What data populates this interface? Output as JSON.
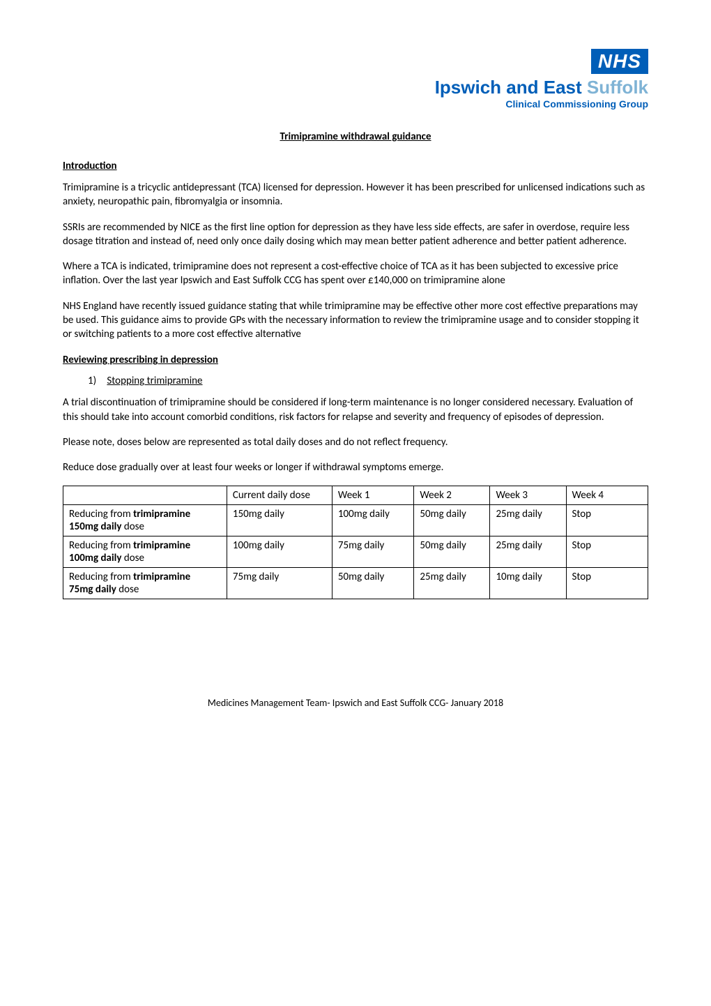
{
  "logo": {
    "badge_text": "NHS",
    "badge_bg": "#005eb8",
    "badge_fg": "#ffffff",
    "org_main": "Ipswich and East",
    "org_suffix": "Suffolk",
    "org_main_color": "#005eb8",
    "org_suffix_color": "#7fb3d5",
    "org_sub": "Clinical Commissioning Group",
    "org_fontsize_pt": 20,
    "sub_fontsize_pt": 10
  },
  "title": "Trimipramine withdrawal guidance",
  "sections": {
    "intro_heading": "Introduction",
    "intro_p1": "Trimipramine is a tricyclic antidepressant (TCA) licensed for depression. However it has been prescribed for unlicensed indications such as anxiety, neuropathic pain, fibromyalgia or insomnia.",
    "intro_p2": "SSRIs are recommended by NICE as the first line option for depression as they have less side effects, are safer in overdose, require less dosage titration and instead of, need only once daily dosing which may mean better patient adherence and better patient adherence.",
    "intro_p3": "Where a TCA is indicated, trimipramine does not represent a cost-effective choice of TCA as it has been subjected to excessive price inflation. Over the last year Ipswich and East Suffolk CCG has spent over £140,000 on trimipramine alone",
    "intro_p4": "NHS England have recently issued guidance stating that while trimipramine may be effective other more cost effective preparations may be used. This guidance aims to provide GPs with the necessary information to review the trimipramine usage and to consider stopping it or switching patients to a more cost effective alternative",
    "review_heading": "Reviewing prescribing in depression",
    "item1_num": "1)",
    "item1_label": "Stopping trimipramine",
    "item1_p1": "A trial discontinuation of trimipramine should be considered if long-term maintenance is no longer considered necessary. Evaluation of this should take into account comorbid conditions, risk factors for relapse and severity and frequency of episodes of depression.",
    "item1_p2": "Please note, doses below are represented as total daily doses and do not reflect frequency.",
    "item1_p3": "Reduce dose gradually over at least four weeks or longer if withdrawal symptoms emerge."
  },
  "table": {
    "border_color": "#000000",
    "fontsize_pt": 11,
    "columns": [
      "",
      "Current daily dose",
      "Week 1",
      "Week 2",
      "Week 3",
      "Week 4"
    ],
    "col_widths_pct": [
      28,
      18,
      14,
      13,
      13,
      14
    ],
    "rows": [
      {
        "label_prefix": "Reducing from ",
        "label_bold1": "trimipramine",
        "label_mid": " ",
        "label_bold2": "150mg daily",
        "label_suffix": " dose",
        "cells": [
          "150mg daily",
          "100mg daily",
          "50mg daily",
          "25mg daily",
          "Stop"
        ]
      },
      {
        "label_prefix": "Reducing from ",
        "label_bold1": "trimipramine",
        "label_mid": " ",
        "label_bold2": "100mg daily",
        "label_suffix": " dose",
        "cells": [
          "100mg daily",
          "75mg daily",
          "50mg daily",
          "25mg daily",
          "Stop"
        ]
      },
      {
        "label_prefix": "Reducing from ",
        "label_bold1": "trimipramine",
        "label_mid": " ",
        "label_bold2": "75mg daily",
        "label_suffix": " dose",
        "cells": [
          "75mg daily",
          "50mg daily",
          "25mg daily",
          "10mg daily",
          "Stop"
        ]
      }
    ]
  },
  "footer": "Medicines Management Team- Ipswich and East Suffolk CCG- January 2018"
}
